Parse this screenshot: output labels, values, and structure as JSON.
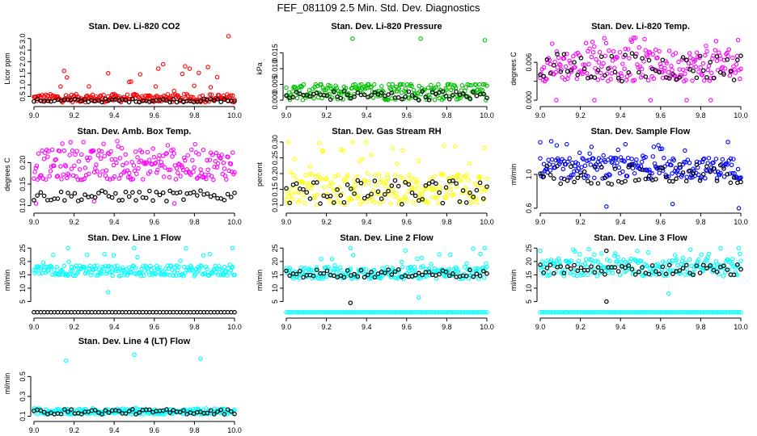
{
  "page_title": "FEF_081109  2.5 Min. Std. Dev. Diagnostics",
  "marker_color_secondary": "#000000",
  "chart_data": [
    {
      "type": "scatter",
      "title": "Stan. Dev. Li-820 CO2",
      "xlabel": "",
      "ylabel": "Licor ppm",
      "color": "#ff0000",
      "xlim": [
        9.0,
        10.0
      ],
      "xticks": [
        "9.0",
        "9.2",
        "9.4",
        "9.6",
        "9.8",
        "10.0"
      ],
      "ylim": [
        0.2,
        3.2
      ],
      "yticks": [
        0.5,
        1.0,
        1.5,
        2.0,
        2.5,
        3.0
      ],
      "ytick_labels": [
        "0.5",
        "1.0",
        "1.5",
        "2.0",
        "2.5",
        "3.0"
      ],
      "series": [
        {
          "name": "primary",
          "band": [
            0.25,
            0.6
          ],
          "spike_max": 1.9,
          "outliers": [
            [
              9.97,
              3.1
            ],
            [
              9.62,
              1.7
            ],
            [
              9.15,
              1.6
            ],
            [
              9.37,
              1.5
            ]
          ]
        },
        {
          "name": "secondary",
          "band": [
            0.25,
            0.4
          ]
        }
      ]
    },
    {
      "type": "scatter",
      "title": "Stan. Dev. Li-820 Pressure",
      "xlabel": "",
      "ylabel": "kPa",
      "color": "#00c000",
      "xlim": [
        9.0,
        10.0
      ],
      "xticks": [
        "9.0",
        "9.2",
        "9.4",
        "9.6",
        "9.8",
        "10.0"
      ],
      "ylim": [
        -0.001,
        0.021
      ],
      "yticks": [
        0.0,
        0.005,
        0.01,
        0.015
      ],
      "ytick_labels": [
        "0.000",
        "0.005",
        "0.010",
        "0.015"
      ],
      "series": [
        {
          "name": "primary",
          "band": [
            0.0,
            0.005
          ],
          "spike_max": 0.005,
          "outliers": [
            [
              9.33,
              0.0195
            ],
            [
              9.67,
              0.0195
            ],
            [
              9.99,
              0.019
            ]
          ]
        },
        {
          "name": "secondary",
          "band": [
            0.0,
            0.003
          ]
        }
      ]
    },
    {
      "type": "scatter",
      "title": "Stan. Dev. Li-820 Temp.",
      "xlabel": "",
      "ylabel": "degrees C",
      "color": "#ff00ff",
      "xlim": [
        9.0,
        10.0
      ],
      "xticks": [
        "9.0",
        "9.2",
        "9.4",
        "9.6",
        "9.8",
        "10.0"
      ],
      "ylim": [
        -0.0005,
        0.0105
      ],
      "yticks": [
        0.0,
        0.003,
        0.006
      ],
      "ytick_labels": [
        "0.000",
        "",
        "0.006"
      ],
      "series": [
        {
          "name": "primary",
          "band": [
            0.003,
            0.008
          ],
          "spike_max": 0.01,
          "outliers": [
            [
              9.08,
              0.0
            ],
            [
              9.27,
              0.0
            ],
            [
              9.55,
              0.0
            ],
            [
              9.73,
              0.0
            ],
            [
              9.85,
              0.0
            ]
          ]
        },
        {
          "name": "secondary",
          "band": [
            0.003,
            0.0075
          ]
        }
      ]
    },
    {
      "type": "scatter",
      "title": "Stan. Dev. Amb. Box Temp.",
      "xlabel": "",
      "ylabel": "degrees C",
      "color": "#ff00ff",
      "xlim": [
        9.0,
        10.0
      ],
      "xticks": [
        "9.0",
        "9.2",
        "9.4",
        "9.6",
        "9.8",
        "10.0"
      ],
      "ylim": [
        0.09,
        0.255
      ],
      "yticks": [
        0.1,
        0.15,
        0.2
      ],
      "ytick_labels": [
        "0.10",
        "0.15",
        "0.20"
      ],
      "series": [
        {
          "name": "primary",
          "band": [
            0.16,
            0.23
          ],
          "spike_max": 0.25,
          "outliers": [
            [
              9.01,
              0.105
            ],
            [
              9.3,
              0.11
            ],
            [
              9.7,
              0.105
            ]
          ]
        },
        {
          "name": "secondary",
          "band": [
            0.11,
            0.135
          ]
        }
      ]
    },
    {
      "type": "scatter",
      "title": "Stan. Dev. Gas Stream RH",
      "xlabel": "",
      "ylabel": "percent",
      "color": "#ffff00",
      "xlim": [
        9.0,
        10.0
      ],
      "xticks": [
        "9.0",
        "9.2",
        "9.4",
        "9.6",
        "9.8",
        "10.0"
      ],
      "ylim": [
        0.085,
        0.31
      ],
      "yticks": [
        0.1,
        0.15,
        0.2,
        0.25,
        0.3
      ],
      "ytick_labels": [
        "0.10",
        "0.15",
        "0.20",
        "0.25",
        "0.30"
      ],
      "series": [
        {
          "name": "primary",
          "band": [
            0.1,
            0.2
          ],
          "spike_max": 0.3,
          "outliers": [
            [
              9.01,
              0.3
            ],
            [
              9.33,
              0.3
            ],
            [
              9.66,
              0.24
            ]
          ]
        },
        {
          "name": "secondary",
          "band": [
            0.1,
            0.18
          ]
        }
      ]
    },
    {
      "type": "scatter",
      "title": "Stan. Dev. Sample Flow",
      "xlabel": "",
      "ylabel": "ml/min",
      "color": "#0000ff",
      "xlim": [
        9.0,
        10.0
      ],
      "xticks": [
        "9.0",
        "9.2",
        "9.4",
        "9.6",
        "9.8",
        "10.0"
      ],
      "ylim": [
        0.58,
        1.42
      ],
      "yticks": [
        0.6,
        1.0
      ],
      "ytick_labels": [
        "0.6",
        "1.0"
      ],
      "series": [
        {
          "name": "primary",
          "band": [
            0.95,
            1.2
          ],
          "spike_max": 1.4,
          "outliers": [
            [
              9.0,
              1.38
            ],
            [
              9.33,
              0.62
            ],
            [
              9.66,
              0.65
            ],
            [
              9.99,
              0.6
            ]
          ]
        },
        {
          "name": "secondary",
          "band": [
            0.88,
            1.12
          ]
        }
      ]
    },
    {
      "type": "scatter",
      "title": "Stan. Dev. Line 1 Flow",
      "xlabel": "",
      "ylabel": "ml/min",
      "color": "#00ffff",
      "xlim": [
        9.0,
        10.0
      ],
      "xticks": [
        "9.0",
        "9.2",
        "9.4",
        "9.6",
        "9.8",
        "10.0"
      ],
      "ylim": [
        0.0,
        26.0
      ],
      "yticks": [
        5,
        10,
        15,
        20,
        25
      ],
      "ytick_labels": [
        "5",
        "10",
        "15",
        "20",
        "25"
      ],
      "series": [
        {
          "name": "primary",
          "band": [
            14.5,
            18.5
          ],
          "spike_max": 25,
          "outliers": [
            [
              9.37,
              8.5
            ],
            [
              9.17,
              25
            ],
            [
              9.5,
              25
            ],
            [
              9.99,
              25
            ]
          ]
        },
        {
          "name": "secondary",
          "band": [
            1.0,
            1.0
          ]
        }
      ]
    },
    {
      "type": "scatter",
      "title": "Stan. Dev. Line 2 Flow",
      "xlabel": "",
      "ylabel": "ml/min",
      "color": "#00ffff",
      "xlim": [
        9.0,
        10.0
      ],
      "xticks": [
        "9.0",
        "9.2",
        "9.4",
        "9.6",
        "9.8",
        "10.0"
      ],
      "ylim": [
        0.0,
        26.0
      ],
      "yticks": [
        5,
        10,
        15,
        20,
        25
      ],
      "ytick_labels": [
        "5",
        "10",
        "15",
        "20",
        "25"
      ],
      "series": [
        {
          "name": "primary",
          "band": [
            13.5,
            18
          ],
          "spike_max": 25,
          "outliers": [
            [
              9.32,
              25
            ],
            [
              9.66,
              6.5
            ],
            [
              9.99,
              25
            ]
          ],
          "floor": 1.0
        },
        {
          "name": "secondary",
          "band": [
            14,
            17
          ],
          "outliers": [
            [
              9.32,
              4.5
            ]
          ]
        }
      ]
    },
    {
      "type": "scatter",
      "title": "Stan. Dev. Line 3 Flow",
      "xlabel": "",
      "ylabel": "ml/min",
      "color": "#00ffff",
      "xlim": [
        9.0,
        10.0
      ],
      "xticks": [
        "9.0",
        "9.2",
        "9.4",
        "9.6",
        "9.8",
        "10.0"
      ],
      "ylim": [
        0.0,
        26.0
      ],
      "yticks": [
        5,
        10,
        15,
        20,
        25
      ],
      "ytick_labels": [
        "5",
        "10",
        "15",
        "20",
        "25"
      ],
      "series": [
        {
          "name": "primary",
          "band": [
            14.5,
            21
          ],
          "spike_max": 25,
          "outliers": [
            [
              9.0,
              24
            ],
            [
              9.99,
              25
            ],
            [
              9.64,
              8
            ]
          ],
          "floor": 1.0
        },
        {
          "name": "secondary",
          "band": [
            15,
            19
          ],
          "outliers": [
            [
              9.33,
              5.0
            ],
            [
              9.33,
              24
            ]
          ]
        }
      ]
    },
    {
      "type": "scatter",
      "title": "Stan. Dev. Line 4 (LT) Flow",
      "xlabel": "",
      "ylabel": "ml/min",
      "color": "#00ffff",
      "xlim": [
        9.0,
        10.0
      ],
      "xticks": [
        "9.0",
        "9.2",
        "9.4",
        "9.6",
        "9.8",
        "10.0"
      ],
      "ylim": [
        0.08,
        0.78
      ],
      "yticks": [
        0.1,
        0.3,
        0.5
      ],
      "ytick_labels": [
        "0.1",
        "0.3",
        "0.5"
      ],
      "series": [
        {
          "name": "primary",
          "band": [
            0.12,
            0.17
          ],
          "spike_max": 0.18,
          "outliers": [
            [
              9.16,
              0.66
            ],
            [
              9.5,
              0.72
            ],
            [
              9.83,
              0.68
            ]
          ]
        },
        {
          "name": "secondary",
          "band": [
            0.12,
            0.17
          ]
        }
      ]
    }
  ]
}
